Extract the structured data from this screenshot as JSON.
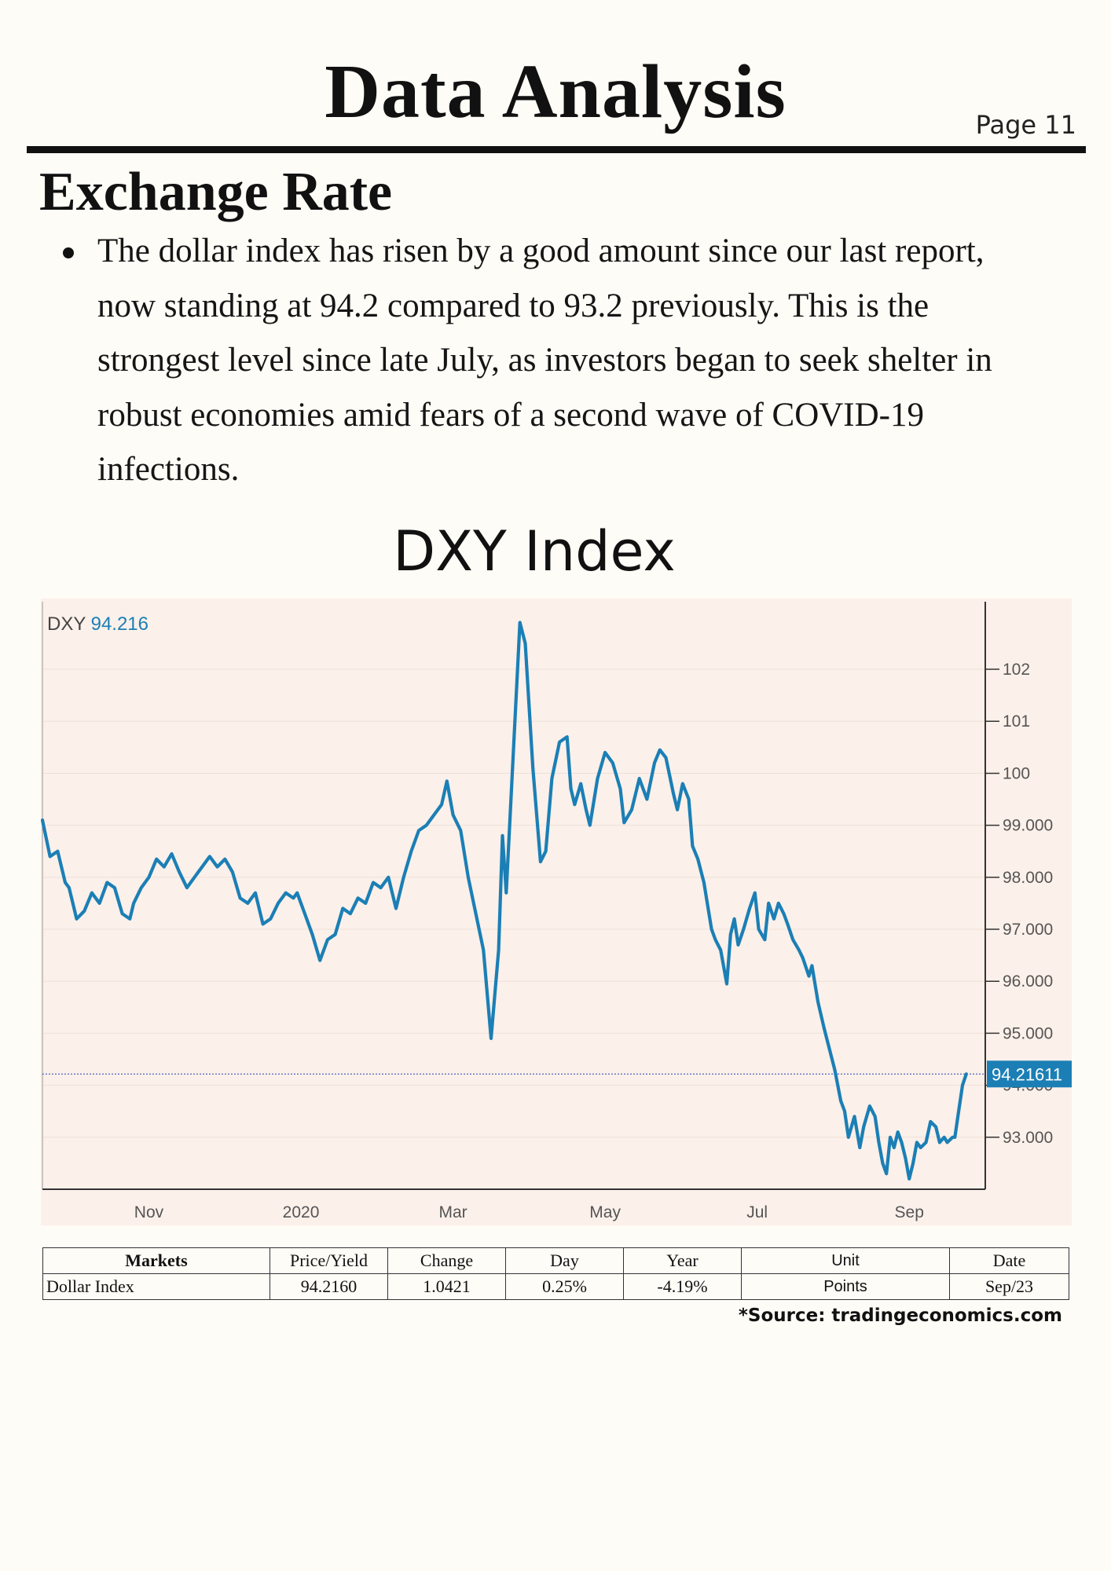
{
  "header": {
    "title": "Data Analysis",
    "page_label": "Page 11"
  },
  "section": {
    "title": "Exchange Rate",
    "bullet": "The dollar index has risen by a good amount since our last report, now standing at 94.2 compared to 93.2 previously. This is the strongest level since late July, as investors began to seek shelter in robust economies amid fears of a second wave of COVID-19 infections."
  },
  "chart_heading": "DXY Index",
  "chart_data": {
    "type": "line",
    "legend": {
      "symbol": "DXY",
      "value": "94.216"
    },
    "current_value": 94.21611,
    "current_label": "94.21611",
    "y_ticks": [
      {
        "v": 93,
        "label": "93.000"
      },
      {
        "v": 94,
        "label": "94.000"
      },
      {
        "v": 95,
        "label": "95.000"
      },
      {
        "v": 96,
        "label": "96.000"
      },
      {
        "v": 97,
        "label": "97.000"
      },
      {
        "v": 98,
        "label": "98.000"
      },
      {
        "v": 99,
        "label": "99.000"
      },
      {
        "v": 100,
        "label": "100"
      },
      {
        "v": 101,
        "label": "101"
      },
      {
        "v": 102,
        "label": "102"
      }
    ],
    "x_ticks": [
      {
        "t": 1.4,
        "label": "Nov"
      },
      {
        "t": 3.4,
        "label": "2020"
      },
      {
        "t": 5.4,
        "label": "Mar"
      },
      {
        "t": 7.4,
        "label": "May"
      },
      {
        "t": 9.4,
        "label": "Jul"
      },
      {
        "t": 11.4,
        "label": "Sep"
      }
    ],
    "ylim": [
      92.0,
      103.3
    ],
    "xlim": [
      0,
      12.4
    ],
    "grid": true,
    "series": [
      {
        "color": "#1b7fb5",
        "points": [
          [
            0.0,
            99.1
          ],
          [
            0.1,
            98.4
          ],
          [
            0.2,
            98.5
          ],
          [
            0.3,
            97.9
          ],
          [
            0.35,
            97.8
          ],
          [
            0.45,
            97.2
          ],
          [
            0.55,
            97.35
          ],
          [
            0.65,
            97.7
          ],
          [
            0.75,
            97.5
          ],
          [
            0.85,
            97.9
          ],
          [
            0.95,
            97.8
          ],
          [
            1.05,
            97.3
          ],
          [
            1.15,
            97.2
          ],
          [
            1.2,
            97.5
          ],
          [
            1.3,
            97.8
          ],
          [
            1.4,
            98.0
          ],
          [
            1.5,
            98.35
          ],
          [
            1.6,
            98.2
          ],
          [
            1.7,
            98.45
          ],
          [
            1.8,
            98.1
          ],
          [
            1.9,
            97.8
          ],
          [
            2.0,
            98.0
          ],
          [
            2.1,
            98.2
          ],
          [
            2.2,
            98.4
          ],
          [
            2.3,
            98.2
          ],
          [
            2.4,
            98.35
          ],
          [
            2.5,
            98.1
          ],
          [
            2.6,
            97.6
          ],
          [
            2.7,
            97.5
          ],
          [
            2.8,
            97.7
          ],
          [
            2.9,
            97.1
          ],
          [
            3.0,
            97.2
          ],
          [
            3.1,
            97.5
          ],
          [
            3.2,
            97.7
          ],
          [
            3.3,
            97.6
          ],
          [
            3.35,
            97.7
          ],
          [
            3.45,
            97.3
          ],
          [
            3.55,
            96.9
          ],
          [
            3.65,
            96.4
          ],
          [
            3.75,
            96.8
          ],
          [
            3.85,
            96.9
          ],
          [
            3.95,
            97.4
          ],
          [
            4.05,
            97.3
          ],
          [
            4.15,
            97.6
          ],
          [
            4.25,
            97.5
          ],
          [
            4.35,
            97.9
          ],
          [
            4.45,
            97.8
          ],
          [
            4.55,
            98.0
          ],
          [
            4.65,
            97.4
          ],
          [
            4.75,
            98.0
          ],
          [
            4.85,
            98.5
          ],
          [
            4.95,
            98.9
          ],
          [
            5.05,
            99.0
          ],
          [
            5.15,
            99.2
          ],
          [
            5.25,
            99.4
          ],
          [
            5.32,
            99.85
          ],
          [
            5.4,
            99.2
          ],
          [
            5.5,
            98.9
          ],
          [
            5.6,
            98.0
          ],
          [
            5.7,
            97.3
          ],
          [
            5.8,
            96.6
          ],
          [
            5.9,
            94.9
          ],
          [
            6.0,
            96.6
          ],
          [
            6.05,
            98.8
          ],
          [
            6.1,
            97.7
          ],
          [
            6.2,
            100.6
          ],
          [
            6.28,
            102.9
          ],
          [
            6.35,
            102.5
          ],
          [
            6.45,
            100.1
          ],
          [
            6.55,
            98.3
          ],
          [
            6.62,
            98.5
          ],
          [
            6.7,
            99.9
          ],
          [
            6.8,
            100.6
          ],
          [
            6.9,
            100.7
          ],
          [
            6.95,
            99.7
          ],
          [
            7.0,
            99.4
          ],
          [
            7.08,
            99.8
          ],
          [
            7.15,
            99.3
          ],
          [
            7.2,
            99.0
          ],
          [
            7.3,
            99.9
          ],
          [
            7.4,
            100.4
          ],
          [
            7.5,
            100.2
          ],
          [
            7.6,
            99.7
          ],
          [
            7.65,
            99.05
          ],
          [
            7.75,
            99.3
          ],
          [
            7.85,
            99.9
          ],
          [
            7.95,
            99.5
          ],
          [
            8.05,
            100.2
          ],
          [
            8.12,
            100.45
          ],
          [
            8.2,
            100.3
          ],
          [
            8.3,
            99.6
          ],
          [
            8.35,
            99.3
          ],
          [
            8.42,
            99.8
          ],
          [
            8.5,
            99.5
          ],
          [
            8.55,
            98.6
          ],
          [
            8.62,
            98.35
          ],
          [
            8.7,
            97.9
          ],
          [
            8.8,
            97.0
          ],
          [
            8.85,
            96.8
          ],
          [
            8.92,
            96.6
          ],
          [
            9.0,
            95.95
          ],
          [
            9.05,
            96.9
          ],
          [
            9.1,
            97.2
          ],
          [
            9.15,
            96.7
          ],
          [
            9.22,
            97.0
          ],
          [
            9.3,
            97.4
          ],
          [
            9.37,
            97.7
          ],
          [
            9.42,
            97.0
          ],
          [
            9.5,
            96.8
          ],
          [
            9.55,
            97.5
          ],
          [
            9.62,
            97.2
          ],
          [
            9.68,
            97.5
          ],
          [
            9.75,
            97.3
          ],
          [
            9.8,
            97.1
          ],
          [
            9.87,
            96.8
          ],
          [
            9.95,
            96.6
          ],
          [
            10.0,
            96.45
          ],
          [
            10.08,
            96.1
          ],
          [
            10.12,
            96.3
          ],
          [
            10.2,
            95.6
          ],
          [
            10.28,
            95.1
          ],
          [
            10.35,
            94.7
          ],
          [
            10.42,
            94.3
          ],
          [
            10.5,
            93.7
          ],
          [
            10.55,
            93.5
          ],
          [
            10.6,
            93.0
          ],
          [
            10.68,
            93.4
          ],
          [
            10.75,
            92.8
          ],
          [
            10.8,
            93.2
          ],
          [
            10.88,
            93.6
          ],
          [
            10.95,
            93.4
          ],
          [
            11.0,
            92.9
          ],
          [
            11.05,
            92.5
          ],
          [
            11.1,
            92.3
          ],
          [
            11.15,
            93.0
          ],
          [
            11.2,
            92.8
          ],
          [
            11.25,
            93.1
          ],
          [
            11.3,
            92.9
          ],
          [
            11.35,
            92.6
          ],
          [
            11.4,
            92.2
          ],
          [
            11.45,
            92.5
          ],
          [
            11.5,
            92.9
          ],
          [
            11.55,
            92.8
          ],
          [
            11.62,
            92.9
          ],
          [
            11.68,
            93.3
          ],
          [
            11.75,
            93.2
          ],
          [
            11.8,
            92.9
          ],
          [
            11.86,
            93.0
          ],
          [
            11.9,
            92.9
          ],
          [
            11.97,
            93.0
          ],
          [
            12.0,
            93.0
          ],
          [
            12.05,
            93.5
          ],
          [
            12.1,
            94.0
          ],
          [
            12.15,
            94.21611
          ]
        ]
      }
    ]
  },
  "table": {
    "headers": [
      "Markets",
      "Price/Yield",
      "Change",
      "Day",
      "Year",
      "Unit",
      "Date"
    ],
    "rows": [
      [
        "Dollar Index",
        "94.2160",
        "1.0421",
        "0.25%",
        "-4.19%",
        "Points",
        "Sep/23"
      ]
    ]
  },
  "source": "*Source: tradingeconomics.com",
  "colors": {
    "chart_bg": "#fbf0ea",
    "line": "#1b7fb5",
    "price_tag": "#1b7fb5",
    "current_line": "#3b56b8"
  }
}
